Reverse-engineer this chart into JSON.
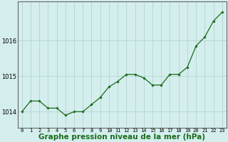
{
  "x": [
    0,
    1,
    2,
    3,
    4,
    5,
    6,
    7,
    8,
    9,
    10,
    11,
    12,
    13,
    14,
    15,
    16,
    17,
    18,
    19,
    20,
    21,
    22,
    23
  ],
  "y": [
    1014.0,
    1014.3,
    1014.3,
    1014.1,
    1014.1,
    1013.9,
    1014.0,
    1014.0,
    1014.2,
    1014.4,
    1014.7,
    1014.85,
    1015.05,
    1015.05,
    1014.95,
    1014.75,
    1014.75,
    1015.05,
    1015.05,
    1015.25,
    1015.85,
    1016.1,
    1016.55,
    1016.8
  ],
  "line_color": "#1a6b1a",
  "marker": "D",
  "marker_size": 1.8,
  "background_color": "#d4eeed",
  "grid_color": "#b8d8d4",
  "xlabel": "Graphe pression niveau de la mer (hPa)",
  "xlabel_fontsize": 7.5,
  "ytick_values": [
    1014,
    1015,
    1016
  ],
  "ytick_labels": [
    "1014",
    "1015",
    "1016"
  ],
  "ylim": [
    1013.55,
    1017.1
  ],
  "xlim": [
    -0.5,
    23.5
  ],
  "linewidth": 0.9,
  "spine_color": "#666666",
  "xtick_fontsize": 5.0,
  "ytick_fontsize": 6.0
}
